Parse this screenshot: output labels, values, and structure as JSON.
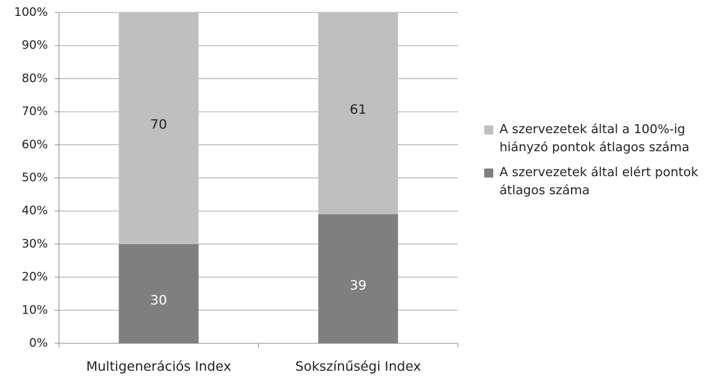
{
  "chart_data": {
    "type": "stacked_bar",
    "categories": [
      "Multigenerációs Index",
      "Sokszínűségi Index"
    ],
    "series": [
      {
        "name": "A szervezetek által a 100%-ig hiányzó pontok átlagos száma",
        "color": "#bfbfbf",
        "values": [
          70,
          61
        ]
      },
      {
        "name": "A szervezetek által elért pontok átlagos száma",
        "color": "#7f7f7f",
        "values": [
          30,
          39
        ]
      }
    ],
    "ylim": [
      0,
      100
    ],
    "yticks": [
      {
        "value": 0,
        "label": "0%"
      },
      {
        "value": 10,
        "label": "10%"
      },
      {
        "value": 20,
        "label": "20%"
      },
      {
        "value": 30,
        "label": "30%"
      },
      {
        "value": 40,
        "label": "40%"
      },
      {
        "value": 50,
        "label": "50%"
      },
      {
        "value": 60,
        "label": "60%"
      },
      {
        "value": 70,
        "label": "70%"
      },
      {
        "value": 80,
        "label": "80%"
      },
      {
        "value": 90,
        "label": "90%"
      },
      {
        "value": 100,
        "label": "100%"
      }
    ],
    "grid": true,
    "legend": "right"
  }
}
